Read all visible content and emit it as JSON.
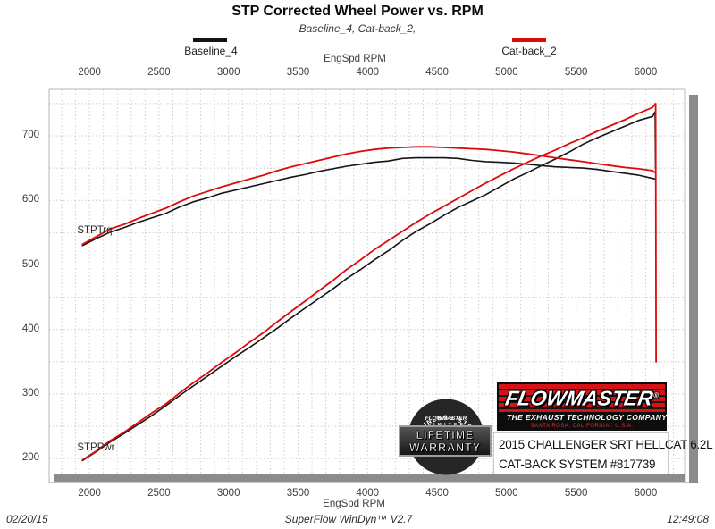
{
  "header": {
    "title": "STP Corrected Wheel Power vs. RPM",
    "subtitle": "Baseline_4, Cat-back_2,"
  },
  "legend": {
    "items": [
      {
        "label": "Baseline_4",
        "color": "#141414"
      },
      {
        "label": "Cat-back_2",
        "color": "#dd0a0a"
      }
    ]
  },
  "axes": {
    "x": {
      "label": "EngSpd RPM",
      "min": 1710,
      "max": 6280,
      "ticks": [
        2000,
        2500,
        3000,
        3500,
        4000,
        4500,
        5000,
        5500,
        6000
      ],
      "minor_step": 100
    },
    "y": {
      "min": 163,
      "max": 772,
      "ticks": [
        200,
        300,
        400,
        500,
        600,
        700
      ],
      "minor_step": 50
    }
  },
  "curve_labels": [
    {
      "text": "STPTrq",
      "rpm": 1950,
      "value": 552
    },
    {
      "text": "STPPwr",
      "rpm": 1950,
      "value": 216
    }
  ],
  "chart_data": {
    "type": "line",
    "title": "STP Corrected Wheel Power vs. RPM",
    "xlabel": "EngSpd RPM",
    "xlim": [
      1710,
      6280
    ],
    "ylim": [
      163,
      772
    ],
    "grid": "dotted",
    "rpm_start": 1950,
    "rpm_step": 100,
    "series": [
      {
        "name": "Baseline_4 STPTrq",
        "color": "#141414",
        "width": 1.6,
        "values": [
          530,
          541,
          551,
          558,
          566,
          573,
          580,
          590,
          598,
          604,
          611,
          616,
          621,
          626,
          631,
          636,
          640,
          645,
          649,
          653,
          656,
          659,
          661,
          665,
          666,
          666,
          666,
          665,
          662,
          660,
          659,
          658,
          656,
          654,
          652,
          651,
          650,
          648,
          645,
          642,
          639,
          634
        ],
        "tail": [
          [
            6070,
            633
          ]
        ]
      },
      {
        "name": "Baseline_4 STPPwr",
        "color": "#141414",
        "width": 1.6,
        "values": [
          197,
          211,
          226,
          239,
          253,
          267,
          282,
          298,
          313,
          328,
          343,
          358,
          372,
          387,
          402,
          418,
          433,
          448,
          463,
          479,
          493,
          508,
          522,
          538,
          552,
          564,
          577,
          589,
          599,
          609,
          621,
          633,
          643,
          654,
          664,
          675,
          687,
          697,
          706,
          715,
          724,
          730
        ],
        "tail": [
          [
            6068,
            737
          ],
          [
            6071,
            650
          ]
        ]
      },
      {
        "name": "Cat-back_2 STPTrq",
        "color": "#dd0a0a",
        "width": 1.8,
        "values": [
          532,
          544,
          556,
          563,
          572,
          580,
          588,
          598,
          607,
          614,
          621,
          627,
          633,
          639,
          646,
          652,
          657,
          662,
          667,
          672,
          676,
          679,
          681,
          682,
          683,
          683,
          682,
          681,
          680,
          679,
          677,
          675,
          672,
          669,
          666,
          663,
          660,
          657,
          654,
          651,
          649,
          646
        ],
        "tail": [
          [
            6070,
            643
          ]
        ]
      },
      {
        "name": "Cat-back_2 STPPwr",
        "color": "#dd0a0a",
        "width": 1.8,
        "values": [
          198,
          212,
          228,
          241,
          256,
          271,
          285,
          302,
          318,
          333,
          349,
          364,
          380,
          395,
          412,
          428,
          444,
          460,
          476,
          493,
          508,
          524,
          538,
          552,
          566,
          579,
          591,
          603,
          615,
          627,
          638,
          649,
          659,
          669,
          678,
          688,
          697,
          707,
          716,
          725,
          735,
          744
        ],
        "tail": [
          [
            6072,
            750
          ],
          [
            6075,
            350
          ]
        ]
      }
    ]
  },
  "branding": {
    "flowmaster": {
      "brand": "FLOWMASTER",
      "reg": "®",
      "tagline": "THE EXHAUST TECHNOLOGY COMPANY'",
      "location": "SANTA ROSA, CALIFORNIA - U.S.A."
    },
    "badge": {
      "arc": "STAINLESS STEEL",
      "brand": "FLOWMASTER",
      "limited": "L I M I T E D",
      "line1": "LIFETIME",
      "line2": "WARRANTY"
    },
    "vehicle": {
      "lines": [
        "2015 CHALLENGER SRT HELLCAT 6.2L",
        "CAT-BACK SYSTEM #817739"
      ]
    }
  },
  "footer": {
    "date": "02/20/15",
    "software": "SuperFlow WinDyn™ V2.7",
    "time": "12:49:08"
  }
}
